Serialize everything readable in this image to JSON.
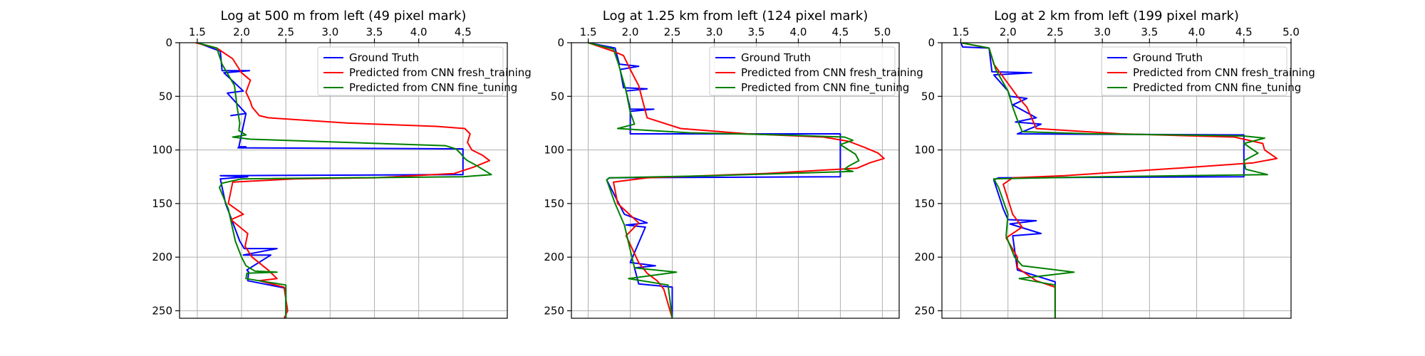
{
  "chart_data": [
    {
      "type": "line",
      "title": "Log at 500 m from left (49 pixel mark)",
      "xlim": [
        1.3,
        5.0
      ],
      "ylim": [
        257,
        0
      ],
      "xticks": [
        1.5,
        2.0,
        2.5,
        3.0,
        3.5,
        4.0,
        4.5
      ],
      "yticks": [
        0,
        50,
        100,
        150,
        200,
        250
      ],
      "x_axis_position": "top",
      "grid": true,
      "legend": "top-right",
      "series": [
        {
          "name": "Ground Truth",
          "color": "#0000ff",
          "x": [
            1.5,
            1.76,
            1.78,
            2.09,
            1.8,
            2.02,
            1.84,
            2.05,
            1.88,
            2.05,
            1.97,
            2.05,
            1.96,
            4.5,
            4.5,
            1.76,
            2.07,
            1.76,
            1.82,
            1.98,
            2.03,
            2.4,
            2.02,
            2.33,
            2.06,
            2.08,
            2.07,
            2.5,
            2.5
          ],
          "y": [
            0,
            8,
            26,
            26,
            28,
            45,
            47,
            66,
            68,
            66,
            97,
            97,
            98,
            99,
            123,
            124,
            125,
            127,
            150,
            185,
            192,
            192,
            198,
            198,
            212,
            214,
            222,
            229,
            257
          ]
        },
        {
          "name": "Predicted from CNN fresh_training",
          "color": "#ff0000",
          "x": [
            1.48,
            1.72,
            1.9,
            2.0,
            2.1,
            2.05,
            2.1,
            2.12,
            2.2,
            2.3,
            3.2,
            4.2,
            4.52,
            4.58,
            4.55,
            4.6,
            4.72,
            4.8,
            4.62,
            4.4,
            3.5,
            2.6,
            1.9,
            1.85,
            2.02,
            1.88,
            2.07,
            2.04,
            2.12,
            2.3,
            2.4,
            2.2,
            2.48,
            2.52,
            2.48
          ],
          "y": [
            0,
            5,
            15,
            28,
            35,
            46,
            55,
            60,
            68,
            70,
            75,
            78,
            80,
            85,
            93,
            100,
            105,
            110,
            116,
            122,
            126,
            127,
            130,
            150,
            160,
            165,
            178,
            190,
            200,
            212,
            220,
            222,
            228,
            250,
            257
          ]
        },
        {
          "name": "Predicted from CNN fine_tuning",
          "color": "#008000",
          "x": [
            1.5,
            1.72,
            1.78,
            1.92,
            1.95,
            1.98,
            1.97,
            2.05,
            1.9,
            2.1,
            4.3,
            4.42,
            4.47,
            4.52,
            4.55,
            4.62,
            4.72,
            4.82,
            4.5,
            2.0,
            1.78,
            1.75,
            1.85,
            1.93,
            2.0,
            2.05,
            2.15,
            2.4,
            2.06,
            2.05,
            2.5,
            2.5
          ],
          "y": [
            0,
            5,
            20,
            40,
            60,
            75,
            82,
            86,
            88,
            90,
            96,
            99,
            103,
            108,
            110,
            113,
            118,
            123,
            125,
            127,
            131,
            135,
            155,
            185,
            200,
            208,
            213,
            214,
            215,
            220,
            226,
            257
          ]
        }
      ]
    },
    {
      "type": "line",
      "title": "Log at 1.25 km from left (124 pixel mark)",
      "xlim": [
        1.3,
        5.2
      ],
      "ylim": [
        257,
        0
      ],
      "xticks": [
        1.5,
        2.0,
        2.5,
        3.0,
        3.5,
        4.0,
        4.5,
        5.0
      ],
      "yticks": [
        0,
        50,
        100,
        150,
        200,
        250
      ],
      "x_axis_position": "top",
      "grid": true,
      "legend": "top-right",
      "series": [
        {
          "name": "Ground Truth",
          "color": "#0000ff",
          "x": [
            1.5,
            1.82,
            1.87,
            2.1,
            1.88,
            1.92,
            2.2,
            1.95,
            2.0,
            2.28,
            2.0,
            2.0,
            4.5,
            4.5,
            1.75,
            1.72,
            1.93,
            2.2,
            1.95,
            2.18,
            2.0,
            2.3,
            2.05,
            2.1,
            2.5,
            2.5
          ],
          "y": [
            0,
            5,
            20,
            22,
            25,
            42,
            43,
            45,
            62,
            62,
            64,
            85,
            85,
            125,
            126,
            128,
            160,
            168,
            170,
            172,
            205,
            208,
            210,
            225,
            228,
            257
          ]
        },
        {
          "name": "Predicted from CNN fresh_training",
          "color": "#ff0000",
          "x": [
            1.5,
            1.8,
            1.92,
            2.0,
            2.1,
            2.15,
            2.2,
            2.6,
            3.4,
            4.3,
            4.6,
            4.8,
            4.95,
            5.02,
            4.85,
            4.7,
            3.6,
            2.2,
            1.8,
            1.85,
            2.1,
            1.95,
            2.1,
            2.2,
            2.32,
            2.4,
            2.5
          ],
          "y": [
            0,
            8,
            12,
            25,
            40,
            55,
            70,
            80,
            85,
            88,
            92,
            98,
            103,
            108,
            112,
            117,
            122,
            126,
            130,
            150,
            168,
            180,
            205,
            215,
            222,
            230,
            257
          ]
        },
        {
          "name": "Predicted from CNN fine_tuning",
          "color": "#008000",
          "x": [
            1.5,
            1.8,
            1.86,
            1.95,
            2.0,
            2.05,
            1.85,
            2.7,
            3.8,
            4.55,
            4.65,
            4.5,
            4.68,
            4.72,
            4.6,
            4.55,
            4.65,
            3.0,
            1.75,
            1.72,
            1.82,
            1.93,
            2.02,
            2.05,
            2.55,
            1.98,
            2.45,
            2.5
          ],
          "y": [
            0,
            6,
            20,
            45,
            65,
            76,
            80,
            84,
            86,
            88,
            91,
            95,
            104,
            110,
            115,
            118,
            120,
            124,
            126,
            128,
            150,
            170,
            200,
            210,
            214,
            220,
            226,
            257
          ]
        }
      ]
    },
    {
      "type": "line",
      "title": "Log at 2 km from left (199 pixel mark)",
      "xlim": [
        1.3,
        5.0
      ],
      "ylim": [
        257,
        0
      ],
      "xticks": [
        1.5,
        2.0,
        2.5,
        3.0,
        3.5,
        4.0,
        4.5,
        5.0
      ],
      "yticks": [
        0,
        50,
        100,
        150,
        200,
        250
      ],
      "x_axis_position": "top",
      "grid": true,
      "legend": "top-right",
      "series": [
        {
          "name": "Ground Truth",
          "color": "#0000ff",
          "x": [
            1.5,
            1.52,
            1.8,
            1.83,
            2.25,
            1.85,
            2.0,
            2.02,
            2.2,
            2.05,
            2.3,
            2.08,
            2.35,
            2.1,
            4.5,
            4.5,
            1.9,
            1.85,
            1.95,
            2.0,
            2.3,
            2.02,
            2.35,
            2.05,
            2.1,
            2.5,
            2.5
          ],
          "y": [
            0,
            4,
            5,
            27,
            28,
            30,
            45,
            50,
            52,
            58,
            70,
            74,
            76,
            85,
            86,
            125,
            126,
            128,
            155,
            165,
            166,
            169,
            178,
            180,
            212,
            223,
            257
          ]
        },
        {
          "name": "Predicted from CNN fresh_training",
          "color": "#ff0000",
          "x": [
            1.5,
            1.8,
            1.85,
            2.0,
            2.1,
            2.2,
            2.3,
            3.2,
            4.4,
            4.7,
            4.72,
            4.85,
            4.6,
            3.8,
            2.6,
            2.05,
            1.95,
            2.05,
            2.15,
            1.98,
            2.1,
            2.1,
            2.3,
            2.5,
            2.5
          ],
          "y": [
            0,
            5,
            20,
            38,
            50,
            60,
            80,
            85,
            88,
            94,
            100,
            108,
            112,
            117,
            124,
            126,
            132,
            160,
            172,
            182,
            200,
            210,
            222,
            228,
            257
          ]
        },
        {
          "name": "Predicted from CNN fine_tuning",
          "color": "#008000",
          "x": [
            1.5,
            1.8,
            1.87,
            2.0,
            2.05,
            2.1,
            2.15,
            2.9,
            3.8,
            4.5,
            4.72,
            4.5,
            4.65,
            4.5,
            4.52,
            4.75,
            3.0,
            1.85,
            1.9,
            2.0,
            1.98,
            2.07,
            2.15,
            2.7,
            2.12,
            2.5,
            2.5
          ],
          "y": [
            0,
            5,
            25,
            45,
            60,
            72,
            83,
            85,
            86,
            87,
            89,
            94,
            103,
            110,
            118,
            123,
            125,
            127,
            135,
            160,
            180,
            200,
            208,
            214,
            220,
            226,
            257
          ]
        }
      ]
    }
  ]
}
